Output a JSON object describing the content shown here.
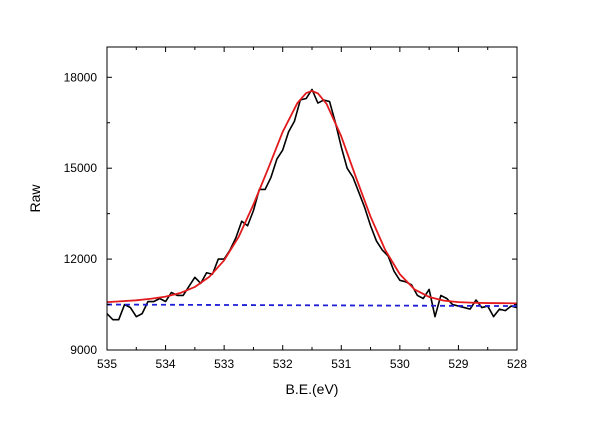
{
  "chart_data": {
    "type": "line",
    "xlabel": "B.E.(eV)",
    "ylabel": "Raw",
    "xlim": [
      535,
      528
    ],
    "ylim": [
      9000,
      19000
    ],
    "x_reversed": true,
    "x_ticks": [
      "535",
      "534",
      "533",
      "532",
      "531",
      "530",
      "529",
      "528"
    ],
    "y_ticks": [
      "9000",
      "12000",
      "15000",
      "18000"
    ],
    "grid": false,
    "legend": "none",
    "series": [
      {
        "role": "raw",
        "color": "#000000",
        "dash": "solid",
        "x": [
          535.0,
          534.9,
          534.8,
          534.7,
          534.6,
          534.5,
          534.4,
          534.3,
          534.2,
          534.1,
          534.0,
          533.9,
          533.8,
          533.7,
          533.6,
          533.5,
          533.4,
          533.3,
          533.2,
          533.1,
          533.0,
          532.9,
          532.8,
          532.7,
          532.6,
          532.5,
          532.4,
          532.3,
          532.2,
          532.1,
          532.0,
          531.9,
          531.8,
          531.7,
          531.6,
          531.5,
          531.4,
          531.3,
          531.2,
          531.1,
          531.0,
          530.9,
          530.8,
          530.7,
          530.6,
          530.5,
          530.4,
          530.3,
          530.2,
          530.1,
          530.0,
          529.9,
          529.8,
          529.7,
          529.6,
          529.5,
          529.4,
          529.3,
          529.2,
          529.1,
          529.0,
          528.9,
          528.8,
          528.7,
          528.6,
          528.5,
          528.4,
          528.3,
          528.2,
          528.1,
          528.0
        ],
        "values": [
          10200,
          10000,
          10000,
          10500,
          10400,
          10100,
          10200,
          10600,
          10600,
          10700,
          10600,
          10900,
          10800,
          10800,
          11100,
          11400,
          11200,
          11550,
          11500,
          12000,
          12000,
          12300,
          12700,
          13250,
          13100,
          13600,
          14300,
          14300,
          14700,
          15300,
          15600,
          16200,
          16550,
          17250,
          17300,
          17600,
          17150,
          17250,
          17200,
          16500,
          15700,
          15000,
          14700,
          14200,
          13700,
          13100,
          12600,
          12300,
          12100,
          11600,
          11300,
          11250,
          11150,
          10800,
          10700,
          11000,
          10100,
          10800,
          10700,
          10500,
          10450,
          10400,
          10350,
          10650,
          10400,
          10450,
          10100,
          10350,
          10300,
          10450,
          10400
        ]
      },
      {
        "role": "fit",
        "color": "#e31a1c",
        "dash": "solid",
        "x": [
          535.0,
          534.75,
          534.5,
          534.25,
          534.0,
          533.75,
          533.5,
          533.25,
          533.0,
          532.75,
          532.5,
          532.25,
          532.0,
          531.75,
          531.6,
          531.5,
          531.4,
          531.25,
          531.0,
          530.75,
          530.5,
          530.25,
          530.0,
          529.75,
          529.5,
          529.25,
          529.0,
          528.75,
          528.5,
          528.25,
          528.0
        ],
        "values": [
          10580,
          10610,
          10640,
          10690,
          10760,
          10880,
          11080,
          11420,
          11960,
          12740,
          13800,
          14980,
          16200,
          17150,
          17480,
          17550,
          17470,
          17120,
          16050,
          14700,
          13400,
          12300,
          11500,
          11000,
          10750,
          10630,
          10580,
          10560,
          10550,
          10545,
          10540
        ]
      },
      {
        "role": "background",
        "color": "#1f1fd6",
        "dash": "dashed",
        "x": [
          535.0,
          528.0
        ],
        "values": [
          10500,
          10450
        ]
      }
    ]
  }
}
